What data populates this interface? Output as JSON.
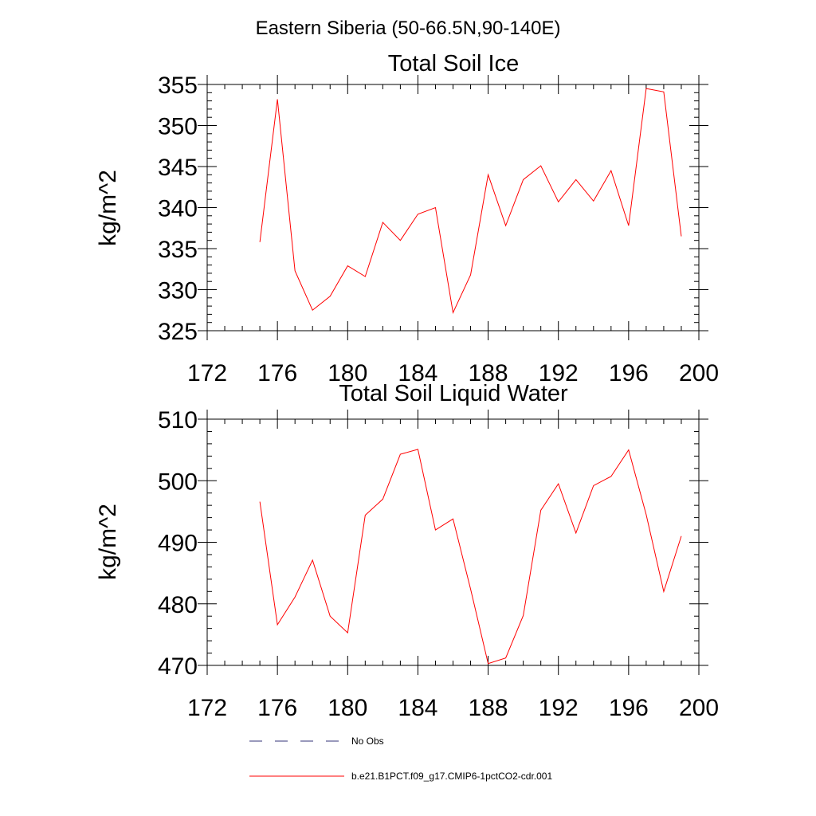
{
  "suptitle": "Eastern Siberia (50-66.5N,90-140E)",
  "chart_data": [
    {
      "type": "line",
      "title": "Total Soil Ice",
      "ylabel": "kg/m^2",
      "xlabel": "",
      "xlim": [
        172,
        200
      ],
      "ylim": [
        325,
        355
      ],
      "x_ticks": [
        172,
        176,
        180,
        184,
        188,
        192,
        196,
        200
      ],
      "y_ticks": [
        325,
        330,
        335,
        340,
        345,
        350,
        355
      ],
      "x_tick_labels": [
        "172",
        "176",
        "180",
        "184",
        "188",
        "192",
        "196",
        "200"
      ],
      "y_tick_labels": [
        "325",
        "330",
        "335",
        "340",
        "345",
        "350",
        "355"
      ],
      "grid": false,
      "series": [
        {
          "name": "b.e21.B1PCT.f09_g17.CMIP6-1pctCO2-cdr.001",
          "color": "#ff0000",
          "x": [
            175,
            176,
            177,
            178,
            179,
            180,
            181,
            182,
            183,
            184,
            185,
            186,
            187,
            188,
            189,
            190,
            191,
            192,
            193,
            194,
            195,
            196,
            197,
            198,
            199
          ],
          "y": [
            335.8,
            353.2,
            332.3,
            327.5,
            329.2,
            332.9,
            331.6,
            338.2,
            336.0,
            339.2,
            340.0,
            327.2,
            331.8,
            344.0,
            337.8,
            343.4,
            345.1,
            340.7,
            343.4,
            340.8,
            344.5,
            337.8,
            354.5,
            354.1,
            336.5
          ]
        }
      ]
    },
    {
      "type": "line",
      "title": "Total Soil Liquid Water",
      "ylabel": "kg/m^2",
      "xlabel": "",
      "xlim": [
        172,
        200
      ],
      "ylim": [
        470,
        510
      ],
      "x_ticks": [
        172,
        176,
        180,
        184,
        188,
        192,
        196,
        200
      ],
      "y_ticks": [
        470,
        480,
        490,
        500,
        510
      ],
      "x_tick_labels": [
        "172",
        "176",
        "180",
        "184",
        "188",
        "192",
        "196",
        "200"
      ],
      "y_tick_labels": [
        "470",
        "480",
        "490",
        "500",
        "510"
      ],
      "grid": false,
      "series": [
        {
          "name": "b.e21.B1PCT.f09_g17.CMIP6-1pctCO2-cdr.001",
          "color": "#ff0000",
          "x": [
            175,
            176,
            177,
            178,
            179,
            180,
            181,
            182,
            183,
            184,
            185,
            186,
            187,
            188,
            189,
            190,
            191,
            192,
            193,
            194,
            195,
            196,
            197,
            198,
            199
          ],
          "y": [
            496.6,
            476.6,
            481.1,
            487.1,
            478.0,
            475.3,
            494.4,
            497.0,
            504.3,
            505.1,
            492.0,
            493.8,
            482.4,
            470.3,
            471.2,
            478.1,
            495.2,
            499.5,
            491.5,
            499.2,
            500.7,
            505.0,
            494.5,
            482.0,
            491.0
          ]
        }
      ]
    }
  ],
  "legend": {
    "placement": "bottom",
    "entries": [
      {
        "label": "No Obs",
        "color": "#33337a",
        "style": "dashed"
      },
      {
        "label": "b.e21.B1PCT.f09_g17.CMIP6-1pctCO2-cdr.001",
        "color": "#ff0000",
        "style": "solid"
      }
    ]
  }
}
